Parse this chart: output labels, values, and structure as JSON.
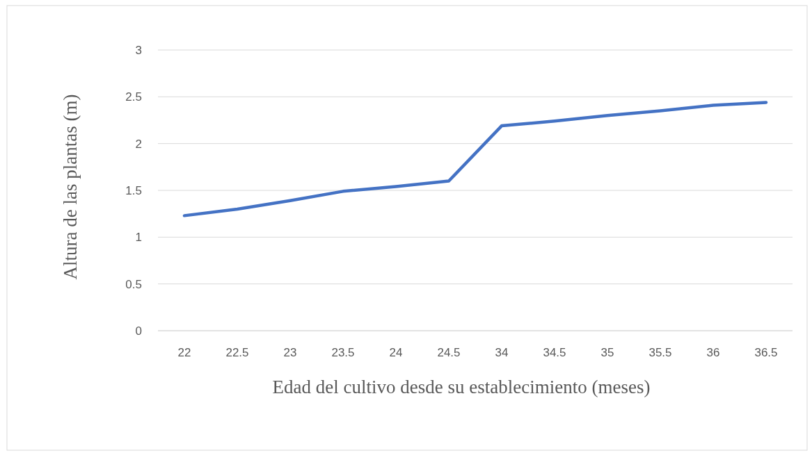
{
  "chart_data": {
    "type": "line",
    "xlabel": "Edad del cultivo desde su establecimiento (meses)",
    "ylabel": "Altura de las plantas (m)",
    "categories": [
      "22",
      "22.5",
      "23",
      "23.5",
      "24",
      "24.5",
      "34",
      "34.5",
      "35",
      "35.5",
      "36",
      "36.5"
    ],
    "series": [
      {
        "color": "#4472c4",
        "values": [
          1.23,
          1.3,
          1.39,
          1.49,
          1.54,
          1.6,
          2.19,
          2.24,
          2.3,
          2.35,
          2.41,
          2.44
        ]
      }
    ],
    "ylim": [
      0,
      3
    ],
    "yticks": [
      0,
      0.5,
      1,
      1.5,
      2,
      2.5,
      3
    ],
    "grid": "y",
    "marker": "none",
    "line_style": "solid"
  }
}
